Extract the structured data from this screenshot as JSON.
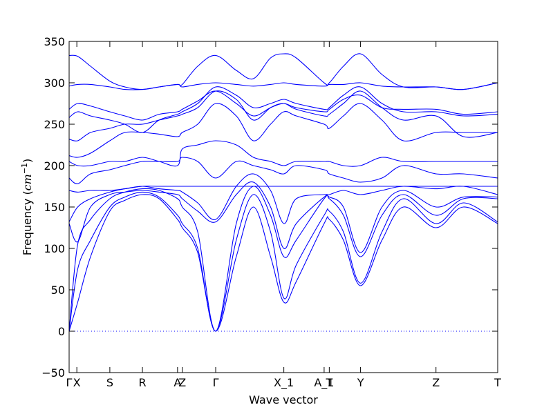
{
  "chart_data": {
    "type": "line",
    "title": "",
    "xlabel": "Wave vector",
    "ylabel": "Frequency ($cm^{-1}$)",
    "ylabel_text": "Frequency (",
    "ylabel_unit": "cm",
    "ylabel_exponent": "−1",
    "ylabel_close": ")",
    "ylim": [
      -50,
      350
    ],
    "yticks": [
      -50,
      0,
      50,
      100,
      150,
      200,
      250,
      300,
      350
    ],
    "xlim": [
      0,
      10
    ],
    "grid": false,
    "line_color": "#0000ff",
    "zero_line": {
      "y": 0,
      "style": "dotted",
      "color": "#0000ff"
    },
    "kpoints": [
      {
        "label": "Γ",
        "x": 0.0
      },
      {
        "label": "X",
        "x": 0.18
      },
      {
        "label": "S",
        "x": 0.95
      },
      {
        "label": "R",
        "x": 1.71
      },
      {
        "label": "A",
        "x": 2.53
      },
      {
        "label": "Z",
        "x": 2.64
      },
      {
        "label": "Γ",
        "x": 3.42
      },
      {
        "label": "X_1",
        "x": 5.01
      },
      {
        "label": "A_1",
        "x": 5.95
      },
      {
        "label": "T",
        "x": 6.07
      },
      {
        "label": "Y",
        "x": 6.8
      },
      {
        "label": "Z",
        "x": 8.56
      },
      {
        "label": "T",
        "x": 10.0
      }
    ],
    "series": [
      {
        "x": [
          0,
          0.2,
          0.5,
          0.95,
          1.3,
          1.71,
          2.1,
          2.53,
          2.64,
          3.0,
          3.42,
          3.9,
          4.3,
          4.7,
          5.01,
          5.3,
          5.95,
          6.07,
          6.4,
          6.8,
          7.3,
          7.8,
          8.56,
          9.2,
          10.0
        ],
        "y": [
          0,
          35,
          90,
          145,
          158,
          165,
          160,
          135,
          125,
          95,
          0,
          90,
          150,
          90,
          35,
          60,
          130,
          135,
          110,
          55,
          110,
          150,
          125,
          150,
          130
        ]
      },
      {
        "x": [
          0,
          0.2,
          0.5,
          0.95,
          1.3,
          1.71,
          2.1,
          2.53,
          2.64,
          3.0,
          3.42,
          3.9,
          4.3,
          4.7,
          5.01,
          5.3,
          5.95,
          6.07,
          6.4,
          6.8,
          7.3,
          7.8,
          8.56,
          9.2,
          10.0
        ],
        "y": [
          0,
          75,
          110,
          150,
          162,
          168,
          162,
          140,
          130,
          100,
          0,
          110,
          165,
          120,
          40,
          80,
          140,
          145,
          120,
          58,
          120,
          160,
          130,
          155,
          132
        ]
      },
      {
        "x": [
          0,
          0.2,
          0.5,
          0.95,
          1.3,
          1.71,
          2.1,
          2.53,
          2.64,
          3.0,
          3.42,
          3.9,
          4.3,
          4.7,
          5.01,
          5.3,
          5.95,
          6.07,
          6.4,
          6.8,
          7.3,
          7.8,
          8.56,
          9.2,
          10.0
        ],
        "y": [
          0,
          105,
          135,
          160,
          168,
          172,
          170,
          160,
          150,
          120,
          0,
          130,
          175,
          140,
          90,
          110,
          160,
          160,
          140,
          90,
          140,
          165,
          140,
          160,
          160
        ]
      },
      {
        "x": [
          0,
          0.2,
          0.5,
          0.95,
          1.3,
          1.71,
          2.1,
          2.53,
          2.64,
          3.0,
          3.42,
          3.9,
          4.3,
          4.7,
          5.01,
          5.3,
          5.95,
          6.07,
          6.4,
          6.8,
          7.3,
          7.8,
          8.56,
          9.2,
          10.0
        ],
        "y": [
          130,
          108,
          150,
          165,
          168,
          170,
          168,
          165,
          160,
          145,
          132,
          165,
          180,
          150,
          100,
          130,
          162,
          162,
          150,
          95,
          150,
          170,
          150,
          162,
          162
        ]
      },
      {
        "x": [
          0,
          0.2,
          0.5,
          0.95,
          1.3,
          1.71,
          2.1,
          2.53,
          2.64,
          3.0,
          3.42,
          3.9,
          4.3,
          4.7,
          5.01,
          5.3,
          5.95,
          6.07,
          6.4,
          6.8,
          7.3,
          7.8,
          8.56,
          9.2,
          10.0
        ],
        "y": [
          132,
          150,
          160,
          168,
          172,
          175,
          172,
          170,
          168,
          155,
          135,
          175,
          190,
          170,
          130,
          160,
          165,
          165,
          170,
          165,
          170,
          175,
          172,
          175,
          165
        ]
      },
      {
        "x": [
          0,
          0.2,
          0.5,
          0.95,
          1.3,
          1.71,
          2.1,
          2.53,
          2.64,
          3.0,
          3.42,
          3.9,
          4.3,
          4.7,
          5.01,
          5.3,
          5.95,
          6.07,
          6.4,
          6.8,
          7.3,
          7.8,
          8.56,
          9.2,
          10.0
        ],
        "y": [
          170,
          168,
          170,
          170,
          172,
          175,
          175,
          175,
          175,
          175,
          175,
          175,
          175,
          175,
          175,
          175,
          175,
          175,
          175,
          175,
          175,
          175,
          175,
          175,
          175
        ]
      },
      {
        "x": [
          0,
          0.2,
          0.5,
          0.95,
          1.3,
          1.71,
          2.1,
          2.53,
          2.64,
          3.0,
          3.42,
          3.9,
          4.3,
          4.7,
          5.01,
          5.3,
          5.95,
          6.07,
          6.4,
          6.8,
          7.3,
          7.8,
          8.56,
          9.2,
          10.0
        ],
        "y": [
          185,
          178,
          190,
          195,
          200,
          205,
          205,
          205,
          210,
          205,
          185,
          205,
          200,
          195,
          190,
          200,
          195,
          190,
          185,
          180,
          185,
          200,
          190,
          190,
          185
        ]
      },
      {
        "x": [
          0,
          0.2,
          0.5,
          0.95,
          1.3,
          1.71,
          2.1,
          2.53,
          2.64,
          3.0,
          3.42,
          3.9,
          4.3,
          4.7,
          5.01,
          5.3,
          5.95,
          6.07,
          6.4,
          6.8,
          7.3,
          7.8,
          8.56,
          9.2,
          10.0
        ],
        "y": [
          205,
          200,
          200,
          205,
          205,
          210,
          205,
          200,
          220,
          225,
          230,
          225,
          210,
          205,
          200,
          205,
          205,
          205,
          200,
          200,
          210,
          205,
          205,
          205,
          205
        ]
      },
      {
        "x": [
          0,
          0.2,
          0.5,
          0.95,
          1.3,
          1.71,
          2.1,
          2.53,
          2.64,
          3.0,
          3.42,
          3.9,
          4.3,
          4.7,
          5.01,
          5.3,
          5.95,
          6.07,
          6.4,
          6.8,
          7.3,
          7.8,
          8.56,
          9.2,
          10.0
        ],
        "y": [
          212,
          210,
          215,
          230,
          240,
          240,
          238,
          235,
          240,
          250,
          275,
          260,
          230,
          250,
          265,
          260,
          250,
          245,
          260,
          275,
          255,
          230,
          240,
          240,
          240
        ]
      },
      {
        "x": [
          0,
          0.2,
          0.5,
          0.95,
          1.3,
          1.71,
          2.1,
          2.53,
          2.64,
          3.0,
          3.42,
          3.9,
          4.3,
          4.7,
          5.01,
          5.3,
          5.95,
          6.07,
          6.4,
          6.8,
          7.3,
          7.8,
          8.56,
          9.2,
          10.0
        ],
        "y": [
          232,
          230,
          240,
          245,
          250,
          250,
          255,
          260,
          262,
          270,
          290,
          280,
          255,
          270,
          275,
          268,
          260,
          262,
          275,
          290,
          270,
          255,
          260,
          235,
          240
        ]
      },
      {
        "x": [
          0,
          0.2,
          0.5,
          0.95,
          1.3,
          1.71,
          2.1,
          2.53,
          2.64,
          3.0,
          3.42,
          3.9,
          4.3,
          4.7,
          5.01,
          5.3,
          5.95,
          6.07,
          6.4,
          6.8,
          7.3,
          7.8,
          8.56,
          9.2,
          10.0
        ],
        "y": [
          258,
          265,
          260,
          255,
          250,
          240,
          255,
          262,
          265,
          275,
          295,
          285,
          270,
          275,
          280,
          275,
          268,
          270,
          285,
          295,
          275,
          265,
          265,
          260,
          262
        ]
      },
      {
        "x": [
          0,
          0.2,
          0.5,
          0.95,
          1.3,
          1.71,
          2.1,
          2.53,
          2.64,
          3.0,
          3.42,
          3.9,
          4.3,
          4.7,
          5.01,
          5.3,
          5.95,
          6.07,
          6.4,
          6.8,
          7.3,
          7.8,
          8.56,
          9.2,
          10.0
        ],
        "y": [
          268,
          275,
          272,
          265,
          260,
          255,
          262,
          265,
          268,
          278,
          290,
          275,
          260,
          270,
          275,
          270,
          265,
          268,
          280,
          285,
          270,
          268,
          268,
          262,
          265
        ]
      },
      {
        "x": [
          0,
          0.2,
          0.5,
          0.95,
          1.3,
          1.71,
          2.1,
          2.53,
          2.64,
          3.0,
          3.42,
          3.9,
          4.3,
          4.7,
          5.01,
          5.3,
          5.95,
          6.07,
          6.4,
          6.8,
          7.3,
          7.8,
          8.56,
          9.2,
          10.0
        ],
        "y": [
          296,
          298,
          298,
          295,
          292,
          292,
          295,
          298,
          295,
          298,
          300,
          298,
          296,
          298,
          300,
          298,
          296,
          298,
          298,
          300,
          296,
          295,
          295,
          292,
          300
        ]
      },
      {
        "x": [
          0,
          0.2,
          0.5,
          0.95,
          1.3,
          1.71,
          2.1,
          2.53,
          2.64,
          3.0,
          3.42,
          3.9,
          4.3,
          4.7,
          5.01,
          5.3,
          5.95,
          6.07,
          6.4,
          6.8,
          7.3,
          7.8,
          8.56,
          9.2,
          10.0
        ],
        "y": [
          333,
          332,
          320,
          302,
          295,
          292,
          295,
          298,
          298,
          320,
          333,
          315,
          305,
          330,
          335,
          330,
          300,
          300,
          320,
          335,
          310,
          295,
          295,
          292,
          300
        ]
      }
    ]
  }
}
